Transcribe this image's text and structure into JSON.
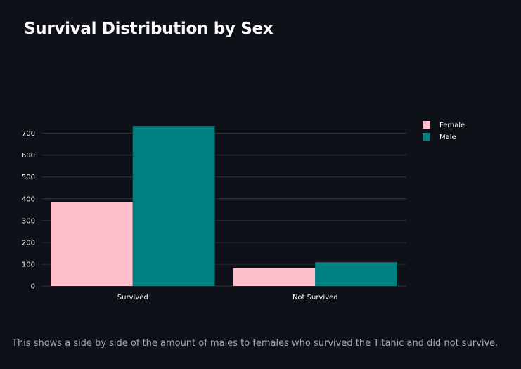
{
  "title": "Survival Distribution by Sex",
  "caption": "This shows a side by side of the amount of males to females who survived the Titanic and did not survive.",
  "colors": {
    "background": "#0e1117",
    "grid": "#31333f",
    "Female": "#ffc0cb",
    "Male": "#008080"
  },
  "chart_data": {
    "type": "bar",
    "title": "Survival Distribution by Sex",
    "categories": [
      "Survived",
      "Not Survived"
    ],
    "series": [
      {
        "name": "Female",
        "values": [
          384,
          81
        ]
      },
      {
        "name": "Male",
        "values": [
          734,
          109
        ]
      }
    ],
    "ylim": [
      0,
      760
    ],
    "yticks": [
      0,
      100,
      200,
      300,
      400,
      500,
      600,
      700
    ],
    "grid": true,
    "legend_position": "top-right"
  }
}
